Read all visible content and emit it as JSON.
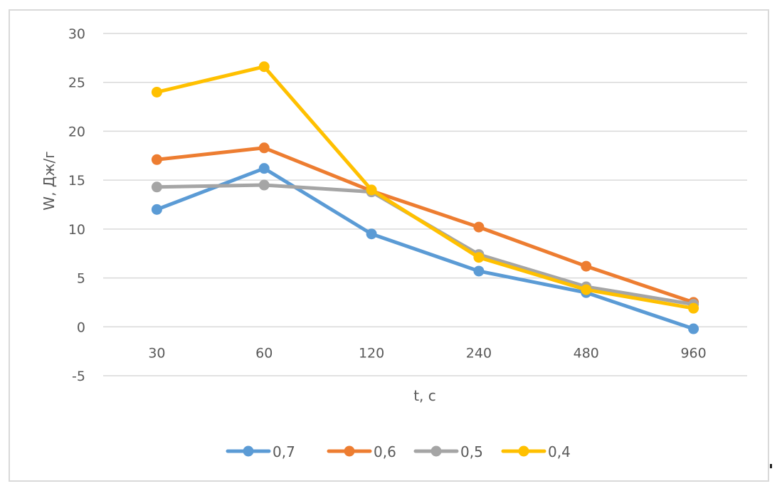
{
  "chart_data": {
    "type": "line",
    "title": "",
    "xlabel": "t, с",
    "ylabel": "W, Дж/г",
    "categories": [
      "30",
      "60",
      "120",
      "240",
      "480",
      "960"
    ],
    "ylim": [
      -5,
      30
    ],
    "yticks": [
      -5,
      0,
      5,
      10,
      15,
      20,
      25,
      30
    ],
    "ytick_labels": [
      "-5",
      "0",
      "5",
      "10",
      "15",
      "20",
      "25",
      "30"
    ],
    "grid": true,
    "legend_position": "bottom",
    "series": [
      {
        "name": "0,7",
        "color": "#5b9bd5",
        "values": [
          12.0,
          16.2,
          9.5,
          5.7,
          3.5,
          -0.2
        ]
      },
      {
        "name": "0,6",
        "color": "#ed7d31",
        "values": [
          17.1,
          18.3,
          13.9,
          10.2,
          6.2,
          2.5
        ]
      },
      {
        "name": "0,5",
        "color": "#a5a5a5",
        "values": [
          14.3,
          14.5,
          13.8,
          7.4,
          4.1,
          2.3
        ]
      },
      {
        "name": "0,4",
        "color": "#ffc000",
        "values": [
          24.0,
          26.6,
          14.0,
          7.1,
          3.8,
          1.9
        ]
      }
    ]
  }
}
